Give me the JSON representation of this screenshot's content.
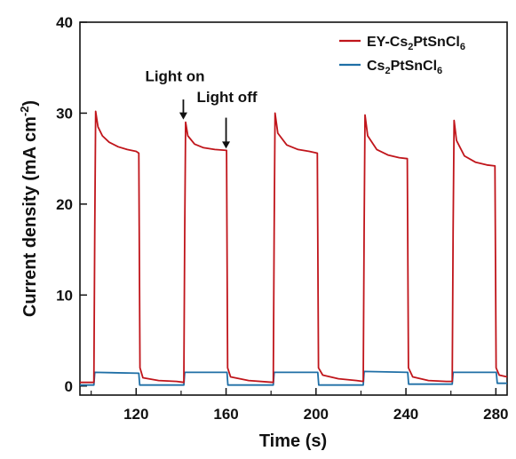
{
  "chart_data": {
    "type": "line",
    "title": "",
    "xlabel": "Time (s)",
    "ylabel": "Current density (mA cm",
    "ylabel_sup": "-2",
    "ylabel_close": ")",
    "xlim": [
      95,
      285
    ],
    "ylim": [
      -1,
      40
    ],
    "xticks": [
      120,
      160,
      200,
      240,
      280
    ],
    "yticks": [
      0,
      10,
      20,
      30,
      40
    ],
    "x_minor_ticks": [
      100,
      140,
      180,
      220,
      260
    ],
    "legend_position": "top-right",
    "series": [
      {
        "name": "EY-Cs2PtSnCl6",
        "name_parts": [
          "EY-Cs",
          "2",
          "PtSnCl",
          "6"
        ],
        "color": "#c0151b",
        "points": [
          [
            95,
            0.4
          ],
          [
            101.2,
            0.4
          ],
          [
            101.6,
            17.0
          ],
          [
            102.0,
            30.2
          ],
          [
            103,
            28.5
          ],
          [
            105,
            27.5
          ],
          [
            108,
            26.8
          ],
          [
            112,
            26.3
          ],
          [
            116,
            26.0
          ],
          [
            120,
            25.8
          ],
          [
            121.2,
            25.6
          ],
          [
            121.7,
            2.0
          ],
          [
            123,
            0.9
          ],
          [
            130,
            0.6
          ],
          [
            138,
            0.5
          ],
          [
            141.2,
            0.4
          ],
          [
            141.6,
            17.0
          ],
          [
            142.0,
            29.0
          ],
          [
            143,
            27.5
          ],
          [
            146,
            26.6
          ],
          [
            150,
            26.2
          ],
          [
            155,
            26.0
          ],
          [
            160.2,
            25.9
          ],
          [
            160.7,
            2.0
          ],
          [
            162,
            1.0
          ],
          [
            170,
            0.6
          ],
          [
            181.0,
            0.4
          ],
          [
            181.4,
            17.0
          ],
          [
            181.8,
            30.0
          ],
          [
            183,
            27.8
          ],
          [
            187,
            26.5
          ],
          [
            192,
            26.0
          ],
          [
            197,
            25.8
          ],
          [
            200.6,
            25.6
          ],
          [
            201.1,
            2.0
          ],
          [
            203,
            1.2
          ],
          [
            210,
            0.8
          ],
          [
            218,
            0.6
          ],
          [
            221.0,
            0.5
          ],
          [
            221.4,
            17.0
          ],
          [
            221.8,
            29.8
          ],
          [
            223,
            27.5
          ],
          [
            227,
            26.0
          ],
          [
            232,
            25.4
          ],
          [
            237,
            25.1
          ],
          [
            240.6,
            25.0
          ],
          [
            241.1,
            2.0
          ],
          [
            243,
            1.0
          ],
          [
            250,
            0.6
          ],
          [
            258,
            0.5
          ],
          [
            260.6,
            0.5
          ],
          [
            261.0,
            17.0
          ],
          [
            261.4,
            29.2
          ],
          [
            262.5,
            27.0
          ],
          [
            266,
            25.3
          ],
          [
            271,
            24.6
          ],
          [
            276,
            24.3
          ],
          [
            279.6,
            24.2
          ],
          [
            280.1,
            2.0
          ],
          [
            281.5,
            1.2
          ],
          [
            285,
            1.0
          ]
        ]
      },
      {
        "name": "Cs2PtSnCl6",
        "name_parts": [
          "Cs",
          "2",
          "PtSnCl",
          "6"
        ],
        "color": "#1f6fa6",
        "points": [
          [
            95,
            0.1
          ],
          [
            101.2,
            0.1
          ],
          [
            101.6,
            1.5
          ],
          [
            121.2,
            1.4
          ],
          [
            121.6,
            0.1
          ],
          [
            141.2,
            0.1
          ],
          [
            141.6,
            1.5
          ],
          [
            160.4,
            1.5
          ],
          [
            160.8,
            0.1
          ],
          [
            181.0,
            0.1
          ],
          [
            181.4,
            1.5
          ],
          [
            200.8,
            1.5
          ],
          [
            201.2,
            0.1
          ],
          [
            221.0,
            0.1
          ],
          [
            221.4,
            1.6
          ],
          [
            240.8,
            1.5
          ],
          [
            241.2,
            0.2
          ],
          [
            260.6,
            0.2
          ],
          [
            261.0,
            1.5
          ],
          [
            280.2,
            1.5
          ],
          [
            280.6,
            0.3
          ],
          [
            285,
            0.3
          ]
        ]
      }
    ],
    "annotations": [
      {
        "text": "Light on",
        "x": 141,
        "arrow_from_y": 31.5,
        "arrow_to_y": 29.3,
        "label_y": 33.5
      },
      {
        "text": "Light off",
        "x": 160,
        "arrow_from_y": 29.5,
        "arrow_to_y": 26.1,
        "label_y": 31.2
      }
    ]
  }
}
